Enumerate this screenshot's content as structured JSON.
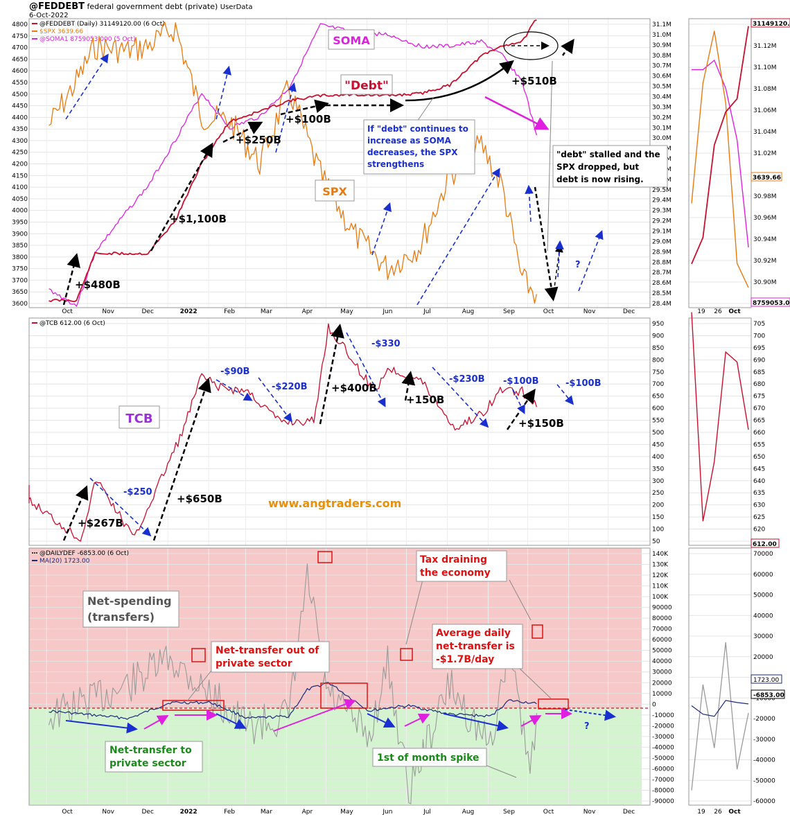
{
  "header": {
    "symbol": "@FEDDEBT",
    "description": "federal government debt (private)",
    "source": "UserData",
    "date": "6-Oct-2022"
  },
  "colors": {
    "debt": "#c8102e",
    "spx": "#e87a10",
    "soma": "#e020e0",
    "tcb": "#c8102e",
    "dailydef": "#9a9a9a",
    "ma": "#1a2a7a",
    "arrow_black": "#000000",
    "arrow_blue": "#1a2fd0",
    "arrow_magenta": "#e020e0",
    "red_zone": "#f7c8c8",
    "green_zone": "#d4f4d0",
    "website": "#e8900a"
  },
  "x_axis": {
    "labels": [
      "Oct",
      "Nov",
      "Dec",
      "2022",
      "Feb",
      "Mar",
      "Apr",
      "May",
      "Jun",
      "Jul",
      "Aug",
      "Sep",
      "Oct",
      "Nov",
      "Dec"
    ],
    "zoom_labels": [
      "19",
      "26",
      "Oct"
    ]
  },
  "panel1": {
    "legend": [
      "@FEDDEBT (Daily) 31149120.00 (6 Oct)",
      "$SPX 3639.66",
      "@SOMA1 8759053.000 (5 Oct)"
    ],
    "left_ticks": [
      "4800",
      "4750",
      "4700",
      "4650",
      "4600",
      "4550",
      "4500",
      "4450",
      "4400",
      "4350",
      "4300",
      "4250",
      "4200",
      "4150",
      "4100",
      "4050",
      "4000",
      "3950",
      "3900",
      "3850",
      "3800",
      "3750",
      "3700",
      "3650",
      "3600"
    ],
    "right_ticks": [
      "31.1M",
      "31.0M",
      "30.9M",
      "30.8M",
      "30.7M",
      "30.6M",
      "30.5M",
      "30.4M",
      "30.3M",
      "30.2M",
      "30.1M",
      "30.0M",
      "29.9M",
      "29.8M",
      "29.7M",
      "29.6M",
      "29.5M",
      "29.4M",
      "29.3M",
      "29.2M",
      "29.1M",
      "29.0M",
      "28.9M",
      "28.8M",
      "28.7M",
      "28.6M",
      "28.5M",
      "28.4M"
    ],
    "zoom_ticks": [
      "31.14M",
      "31.12M",
      "31.10M",
      "31.08M",
      "31.06M",
      "31.04M",
      "31.02M",
      "31.00M",
      "30.98M",
      "30.96M",
      "30.94M",
      "30.92M",
      "30.90M",
      "30.88M"
    ],
    "zoom_badges": [
      "31149120.0",
      "3639.66",
      "8759053.000"
    ],
    "labels": {
      "soma": "SOMA",
      "debt": "\"Debt\"",
      "spx": "SPX",
      "d480": "+$480B",
      "d1100": "+$1,100B",
      "d250": "+$250B",
      "d100": "+$100B",
      "d510": "+$510B",
      "q": "?",
      "note1": [
        "If \"debt\" continues to",
        "increase as SOMA",
        "decreases, the SPX",
        "strengthens"
      ],
      "note2": [
        "\"debt\" stalled and the",
        "SPX dropped, but",
        "debt is now rising."
      ]
    }
  },
  "panel2": {
    "legend": "@TCB 612.00 (6 Oct)",
    "right_ticks": [
      "950",
      "900",
      "850",
      "800",
      "750",
      "700",
      "650",
      "600",
      "550",
      "500",
      "450",
      "400",
      "350",
      "300",
      "250",
      "200",
      "150",
      "100",
      "50"
    ],
    "zoom_ticks": [
      "705",
      "700",
      "695",
      "690",
      "685",
      "680",
      "675",
      "670",
      "665",
      "660",
      "655",
      "650",
      "645",
      "640",
      "635",
      "630",
      "625",
      "620",
      "615"
    ],
    "zoom_badge": "612.00",
    "labels": {
      "tcb": "TCB",
      "website": "www.angtraders.com",
      "p267": "+$267B",
      "m250": "-$250",
      "p650": "+$650B",
      "m90": "-$90B",
      "m220": "-$220B",
      "p400": "+$400B",
      "m330": "-$330",
      "p150a": "+150B",
      "m230": "-$230B",
      "m100a": "-$100B",
      "p150b": "+$150B",
      "m100b": "-$100B"
    }
  },
  "panel3": {
    "legend": [
      "@DAILYDEF -6853.00 (6 Oct)",
      "MA(20) 1723.00"
    ],
    "right_ticks": [
      "140K",
      "130K",
      "120K",
      "110K",
      "100K",
      "90000",
      "80000",
      "70000",
      "60000",
      "50000",
      "40000",
      "30000",
      "20000",
      "10000",
      "0",
      "-10000",
      "-20000",
      "-30000",
      "-40000",
      "-50000",
      "-60000",
      "-70000",
      "-80000",
      "-90000"
    ],
    "zoom_ticks": [
      "70000",
      "60000",
      "50000",
      "40000",
      "30000",
      "20000",
      "10000",
      "-10000",
      "-20000",
      "-30000",
      "-40000",
      "-50000",
      "-60000"
    ],
    "zoom_badges": [
      "1723.00",
      "-6853.00"
    ],
    "labels": {
      "net_spending": [
        "Net-spending",
        "(transfers)"
      ],
      "net_out": [
        "Net-transfer out of",
        "private sector"
      ],
      "tax": [
        "Tax draining",
        "the economy"
      ],
      "avg": [
        "Average daily",
        "net-transfer is",
        "-$1.7B/day"
      ],
      "net_to": [
        "Net-transfer to",
        "private sector"
      ],
      "spike": "1st of month spike",
      "q": "?"
    }
  },
  "chart_data": [
    {
      "type": "line",
      "title": "@FEDDEBT federal government debt (private)",
      "x": [
        "2021-10-01",
        "2021-10-22",
        "2021-11-05",
        "2021-11-30",
        "2021-12-15",
        "2022-01-05",
        "2022-01-25",
        "2022-02-15",
        "2022-03-10",
        "2022-04-01",
        "2022-04-25",
        "2022-05-20",
        "2022-06-15",
        "2022-07-10",
        "2022-08-01",
        "2022-08-25",
        "2022-09-10",
        "2022-09-25",
        "2022-10-06"
      ],
      "series": [
        {
          "name": "@FEDDEBT",
          "axis": "right",
          "values": [
            28.43,
            28.43,
            28.88,
            28.88,
            28.88,
            29.2,
            29.75,
            30.15,
            30.25,
            30.35,
            30.4,
            30.41,
            30.4,
            30.42,
            30.5,
            30.78,
            30.88,
            30.92,
            31.14
          ]
        },
        {
          "name": "$SPX",
          "axis": "left",
          "values": [
            4360,
            4550,
            4700,
            4680,
            4700,
            4780,
            4400,
            4380,
            4200,
            4520,
            4150,
            3900,
            3750,
            3850,
            4150,
            4280,
            4100,
            3700,
            3640
          ]
        },
        {
          "name": "@SOMA1",
          "axis": "left",
          "values": [
            3660,
            3590,
            3820,
            4000,
            4100,
            4300,
            4500,
            4350,
            4400,
            4520,
            4790,
            4760,
            4750,
            4700,
            4700,
            4720,
            4660,
            4550,
            4320
          ]
        }
      ],
      "ylim_left": [
        3600,
        4800
      ],
      "ylim_right": [
        28.4,
        31.1
      ]
    },
    {
      "type": "line",
      "title": "@TCB",
      "x": [
        "2021-09-01",
        "2021-10-25",
        "2021-11-06",
        "2021-12-05",
        "2021-12-10",
        "2022-01-10",
        "2022-01-25",
        "2022-02-05",
        "2022-03-01",
        "2022-03-25",
        "2022-04-20",
        "2022-05-01",
        "2022-05-15",
        "2022-06-05",
        "2022-06-15",
        "2022-07-10",
        "2022-08-05",
        "2022-08-25",
        "2022-09-10",
        "2022-09-25",
        "2022-10-06"
      ],
      "series": [
        {
          "name": "@TCB",
          "values": [
            270,
            40,
            300,
            40,
            110,
            500,
            750,
            700,
            680,
            550,
            550,
            960,
            850,
            680,
            780,
            730,
            520,
            580,
            690,
            680,
            612
          ]
        }
      ],
      "ylim": [
        30,
        980
      ]
    },
    {
      "type": "line",
      "title": "@DAILYDEF",
      "x": [
        "2021-10-01",
        "2021-12-01",
        "2022-01-01",
        "2022-02-01",
        "2022-03-01",
        "2022-04-01",
        "2022-04-15",
        "2022-05-01",
        "2022-06-01",
        "2022-06-15",
        "2022-07-01",
        "2022-08-01",
        "2022-09-01",
        "2022-09-15",
        "2022-10-01",
        "2022-10-06"
      ],
      "series": [
        {
          "name": "@DAILYDEF",
          "values": [
            -10000,
            20000,
            45000,
            10000,
            -20000,
            -10000,
            120000,
            10000,
            -30000,
            40000,
            -80000,
            20000,
            -40000,
            60000,
            -60000,
            -6853
          ]
        },
        {
          "name": "MA(20)",
          "values": [
            -5000,
            -12000,
            3000,
            3000,
            -12000,
            -10000,
            15000,
            22000,
            -5000,
            -2000,
            0,
            -8000,
            -10000,
            5000,
            3000,
            1723
          ]
        }
      ],
      "ylim": [
        -90000,
        145000
      ]
    }
  ]
}
